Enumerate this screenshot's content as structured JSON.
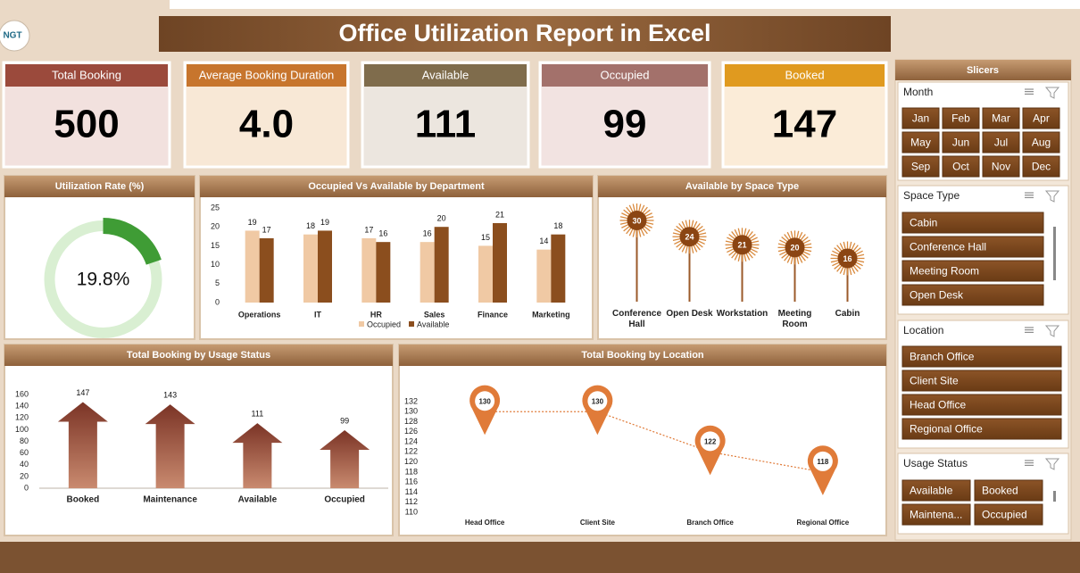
{
  "title": "Office Utilization Report in Excel",
  "logo": "NGT",
  "kpis": [
    {
      "label": "Total Booking",
      "value": "500",
      "color": "#9b4a3c",
      "background": "#f2e1de"
    },
    {
      "label": "Average Booking Duration",
      "value": "4.0",
      "color": "#c7752d",
      "background": "#f8e8d6"
    },
    {
      "label": "Available",
      "value": "111",
      "color": "#7f6c4c",
      "background": "#ece6df"
    },
    {
      "label": "Occupied",
      "value": "99",
      "color": "#a3716b",
      "background": "#f2e3e1"
    },
    {
      "label": "Booked",
      "value": "147",
      "color": "#e09a1f",
      "background": "#fbecd8"
    }
  ],
  "slicers": {
    "title": "Slicers",
    "sections": [
      {
        "title": "Month",
        "items": [
          "Jan",
          "Feb",
          "Mar",
          "Apr",
          "May",
          "Jun",
          "Jul",
          "Aug",
          "Sep",
          "Oct",
          "Nov",
          "Dec"
        ]
      },
      {
        "title": "Space Type",
        "items": [
          "Cabin",
          "Conference Hall",
          "Meeting Room",
          "Open Desk"
        ]
      },
      {
        "title": "Location",
        "items": [
          "Branch Office",
          "Client Site",
          "Head Office",
          "Regional Office"
        ]
      },
      {
        "title": "Usage Status",
        "items": [
          "Available",
          "Booked",
          "Maintena...",
          "Occupied"
        ]
      }
    ]
  },
  "chart_data": [
    {
      "type": "doughnut",
      "title": "Utilization Rate (%)",
      "values": [
        19.8
      ],
      "value_labels": [
        "19.8%"
      ],
      "color": "#3f9c35",
      "track_color": "#d9efd2"
    },
    {
      "type": "bar",
      "title": "Occupied Vs Available by Department",
      "categories": [
        "Operations",
        "IT",
        "HR",
        "Sales",
        "Finance",
        "Marketing"
      ],
      "series": [
        {
          "name": "Occupied",
          "color": "#f0c9a4",
          "values": [
            19,
            18,
            17,
            16,
            15,
            14
          ]
        },
        {
          "name": "Available",
          "color": "#8b4e1e",
          "values": [
            17,
            19,
            16,
            20,
            21,
            18
          ]
        }
      ],
      "ylim": [
        0,
        25
      ],
      "yticks": [
        0,
        5,
        10,
        15,
        20,
        25
      ],
      "legend": "bottom"
    },
    {
      "type": "lollipop",
      "title": "Available by Space Type",
      "categories": [
        "Conference Hall",
        "Open Desk",
        "Workstation",
        "Meeting Room",
        "Cabin"
      ],
      "values": [
        30,
        24,
        21,
        20,
        16
      ],
      "color": "#8b4513"
    },
    {
      "type": "arrow",
      "title": "Total Booking by Usage Status",
      "categories": [
        "Booked",
        "Maintenance",
        "Available",
        "Occupied"
      ],
      "values": [
        147,
        143,
        111,
        99
      ],
      "ylim": [
        0,
        160
      ],
      "yticks": [
        0,
        20,
        40,
        60,
        80,
        100,
        120,
        140,
        160
      ],
      "color": "#8a4533"
    },
    {
      "type": "line",
      "title": "Total Booking by Location",
      "categories": [
        "Head Office",
        "Client Site",
        "Branch Office",
        "Regional Office"
      ],
      "values": [
        130,
        130,
        122,
        118
      ],
      "ylim": [
        110,
        132
      ],
      "yticks": [
        110,
        112,
        114,
        116,
        118,
        120,
        122,
        124,
        126,
        128,
        130,
        132
      ],
      "color": "#e07b39"
    }
  ]
}
